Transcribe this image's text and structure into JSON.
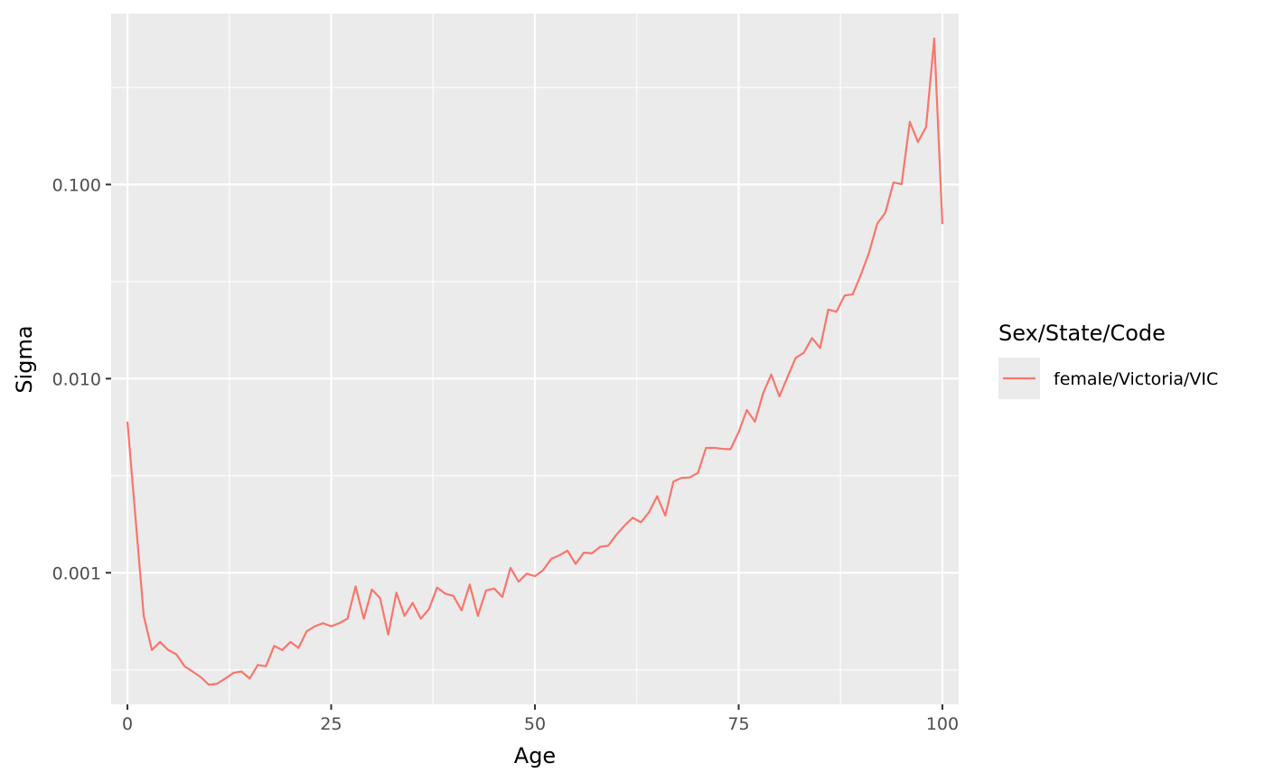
{
  "chart_data": {
    "type": "line",
    "xlabel": "Age",
    "ylabel": "Sigma",
    "x_scale": "linear",
    "y_scale": "log10",
    "xlim": [
      -2,
      102
    ],
    "ylim": [
      0.00021,
      0.76
    ],
    "x_ticks": [
      0,
      25,
      50,
      75,
      100
    ],
    "x_tick_labels": [
      "0",
      "25",
      "50",
      "75",
      "100"
    ],
    "y_ticks": [
      0.001,
      0.01,
      0.1
    ],
    "y_tick_labels": [
      "0.001",
      "0.010",
      "0.100"
    ],
    "grid": true,
    "legend_position": "right",
    "legend_title": "Sex/State/Code",
    "series": [
      {
        "name": "female/Victoria/VIC",
        "color": "#F8766D",
        "x": [
          0,
          1,
          2,
          3,
          4,
          5,
          6,
          7,
          8,
          9,
          10,
          11,
          12,
          13,
          14,
          15,
          16,
          17,
          18,
          19,
          20,
          21,
          22,
          23,
          24,
          25,
          26,
          27,
          28,
          29,
          30,
          31,
          32,
          33,
          34,
          35,
          36,
          37,
          38,
          39,
          40,
          41,
          42,
          43,
          44,
          45,
          46,
          47,
          48,
          49,
          50,
          51,
          52,
          53,
          54,
          55,
          56,
          57,
          58,
          59,
          60,
          61,
          62,
          63,
          64,
          65,
          66,
          67,
          68,
          69,
          70,
          71,
          72,
          73,
          74,
          75,
          76,
          77,
          78,
          79,
          80,
          81,
          82,
          83,
          84,
          85,
          86,
          87,
          88,
          89,
          90,
          91,
          92,
          93,
          94,
          95,
          96,
          97,
          98,
          99,
          100
        ],
        "y": [
          0.006,
          0.0019,
          0.0006,
          0.0004,
          0.00044,
          0.0004,
          0.00038,
          0.00033,
          0.00031,
          0.00029,
          0.000265,
          0.000268,
          0.000285,
          0.000305,
          0.00031,
          0.000285,
          0.000335,
          0.00033,
          0.00042,
          0.0004,
          0.00044,
          0.00041,
          0.0005,
          0.00053,
          0.00055,
          0.00053,
          0.00055,
          0.00058,
          0.00085,
          0.00058,
          0.00082,
          0.00074,
          0.00048,
          0.00079,
          0.0006,
          0.0007,
          0.00058,
          0.00065,
          0.00084,
          0.00078,
          0.00076,
          0.00064,
          0.00087,
          0.0006,
          0.00081,
          0.00083,
          0.00075,
          0.00106,
          0.0009,
          0.00099,
          0.00096,
          0.00103,
          0.00118,
          0.00123,
          0.0013,
          0.00111,
          0.00127,
          0.00126,
          0.00136,
          0.00138,
          0.00157,
          0.00175,
          0.00192,
          0.00182,
          0.00205,
          0.00248,
          0.00197,
          0.00295,
          0.00308,
          0.0031,
          0.00327,
          0.0044,
          0.0044,
          0.00435,
          0.00433,
          0.0053,
          0.0069,
          0.006,
          0.0084,
          0.0105,
          0.0081,
          0.0102,
          0.0128,
          0.0136,
          0.0162,
          0.0144,
          0.0227,
          0.0221,
          0.0268,
          0.0272,
          0.0343,
          0.0446,
          0.0628,
          0.0716,
          0.1025,
          0.1005,
          0.2105,
          0.1657,
          0.1976,
          0.5655,
          0.0625
        ]
      }
    ]
  }
}
